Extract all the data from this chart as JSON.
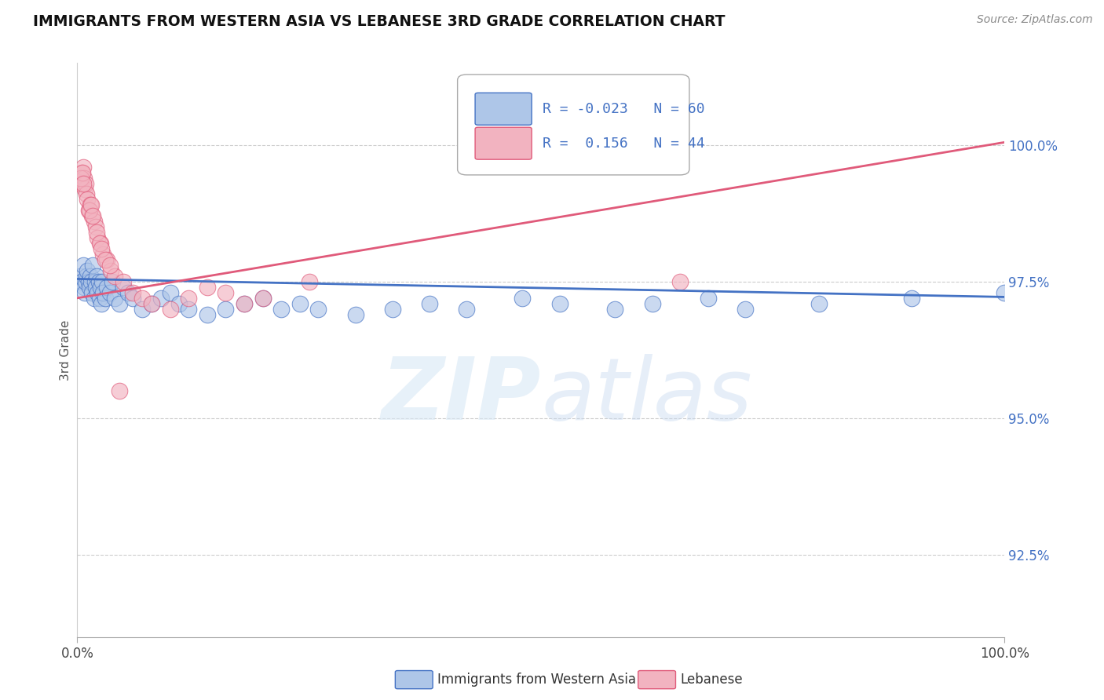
{
  "title": "IMMIGRANTS FROM WESTERN ASIA VS LEBANESE 3RD GRADE CORRELATION CHART",
  "source": "Source: ZipAtlas.com",
  "ylabel": "3rd Grade",
  "xlim": [
    0.0,
    100.0
  ],
  "ylim": [
    91.0,
    101.5
  ],
  "yticks": [
    92.5,
    95.0,
    97.5,
    100.0
  ],
  "ytick_labels": [
    "92.5%",
    "95.0%",
    "97.5%",
    "100.0%"
  ],
  "blue_R": -0.023,
  "blue_N": 60,
  "pink_R": 0.156,
  "pink_N": 44,
  "blue_color": "#aec6e8",
  "pink_color": "#f2b3c0",
  "blue_line_color": "#4472c4",
  "pink_line_color": "#e05a7a",
  "legend_blue_label": "Immigrants from Western Asia",
  "legend_pink_label": "Lebanese",
  "blue_line_start_y": 97.55,
  "blue_line_end_y": 97.22,
  "pink_line_start_y": 97.2,
  "pink_line_end_y": 100.05,
  "blue_points_x": [
    0.3,
    0.5,
    0.6,
    0.7,
    0.8,
    0.9,
    1.0,
    1.1,
    1.2,
    1.3,
    1.4,
    1.5,
    1.6,
    1.7,
    1.8,
    1.9,
    2.0,
    2.1,
    2.2,
    2.3,
    2.4,
    2.5,
    2.6,
    2.7,
    2.8,
    3.0,
    3.2,
    3.5,
    3.8,
    4.0,
    4.5,
    5.0,
    5.5,
    6.0,
    7.0,
    8.0,
    9.0,
    10.0,
    11.0,
    12.0,
    14.0,
    16.0,
    18.0,
    20.0,
    22.0,
    24.0,
    26.0,
    30.0,
    34.0,
    38.0,
    42.0,
    48.0,
    52.0,
    58.0,
    62.0,
    68.0,
    72.0,
    80.0,
    90.0,
    100.0
  ],
  "blue_points_y": [
    97.6,
    97.5,
    97.8,
    97.4,
    97.3,
    97.5,
    97.6,
    97.7,
    97.5,
    97.4,
    97.6,
    97.5,
    97.3,
    97.8,
    97.2,
    97.5,
    97.4,
    97.6,
    97.3,
    97.5,
    97.2,
    97.4,
    97.1,
    97.5,
    97.3,
    97.2,
    97.4,
    97.3,
    97.5,
    97.2,
    97.1,
    97.4,
    97.3,
    97.2,
    97.0,
    97.1,
    97.2,
    97.3,
    97.1,
    97.0,
    96.9,
    97.0,
    97.1,
    97.2,
    97.0,
    97.1,
    97.0,
    96.9,
    97.0,
    97.1,
    97.0,
    97.2,
    97.1,
    97.0,
    97.1,
    97.2,
    97.0,
    97.1,
    97.2,
    97.3
  ],
  "pink_points_x": [
    0.3,
    0.5,
    0.6,
    0.7,
    0.8,
    0.9,
    1.0,
    1.1,
    1.2,
    1.4,
    1.6,
    1.8,
    2.0,
    2.2,
    2.5,
    2.8,
    3.2,
    3.6,
    4.0,
    5.0,
    6.0,
    7.0,
    8.0,
    10.0,
    12.0,
    14.0,
    16.0,
    18.0,
    20.0,
    25.0,
    60.0,
    0.4,
    0.55,
    0.65,
    1.3,
    1.5,
    1.7,
    2.1,
    2.4,
    2.6,
    3.0,
    3.5,
    4.5,
    65.0
  ],
  "pink_points_y": [
    99.3,
    99.5,
    99.6,
    99.4,
    99.2,
    99.3,
    99.1,
    99.0,
    98.8,
    98.9,
    98.7,
    98.6,
    98.5,
    98.3,
    98.2,
    98.0,
    97.9,
    97.7,
    97.6,
    97.5,
    97.3,
    97.2,
    97.1,
    97.0,
    97.2,
    97.4,
    97.3,
    97.1,
    97.2,
    97.5,
    100.0,
    99.4,
    99.5,
    99.3,
    98.8,
    98.9,
    98.7,
    98.4,
    98.2,
    98.1,
    97.9,
    97.8,
    95.5,
    97.5
  ]
}
